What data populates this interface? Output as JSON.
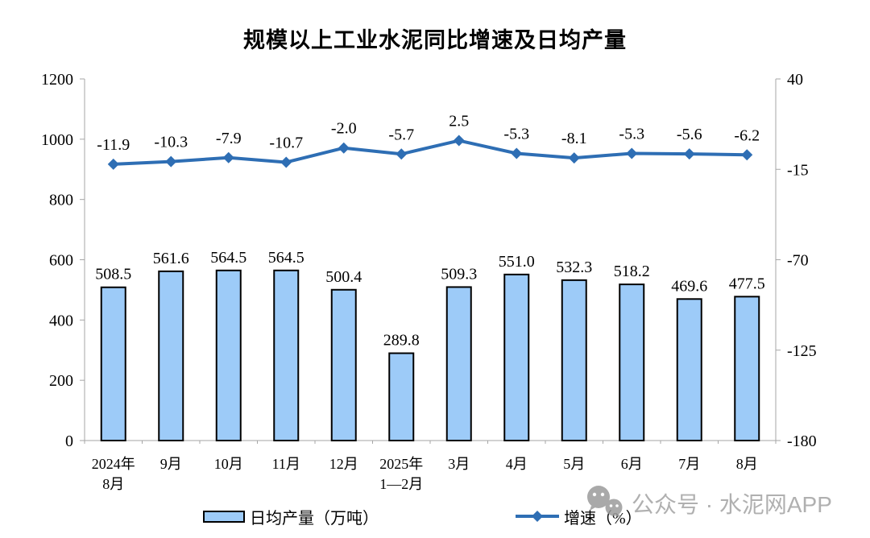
{
  "title": "规模以上工业水泥同比增速及日均产量",
  "chart_data": {
    "type": "bar+line combo",
    "title": "规模以上工业水泥同比增速及日均产量",
    "categories": [
      [
        "2024年",
        "8月"
      ],
      [
        "9月"
      ],
      [
        "10月"
      ],
      [
        "11月"
      ],
      [
        "12月"
      ],
      [
        "2025年",
        "1—2月"
      ],
      [
        "3月"
      ],
      [
        "4月"
      ],
      [
        "5月"
      ],
      [
        "6月"
      ],
      [
        "7月"
      ],
      [
        "8月"
      ]
    ],
    "series": [
      {
        "name": "日均产量（万吨）",
        "type": "bar",
        "axis": "left",
        "values": [
          508.5,
          561.6,
          564.5,
          564.5,
          500.4,
          289.8,
          509.3,
          551.0,
          532.3,
          518.2,
          469.6,
          477.5
        ],
        "labels": [
          "508.5",
          "561.6",
          "564.5",
          "564.5",
          "500.4",
          "289.8",
          "509.3",
          "551.0",
          "532.3",
          "518.2",
          "469.6",
          "477.5"
        ]
      },
      {
        "name": "增速（%）",
        "type": "line",
        "axis": "right",
        "values": [
          -11.9,
          -10.3,
          -7.9,
          -10.7,
          -2.0,
          -5.7,
          2.5,
          -5.3,
          -8.1,
          -5.3,
          -5.6,
          -6.2
        ],
        "labels": [
          "-11.9",
          "-10.3",
          "-7.9",
          "-10.7",
          "-2.0",
          "-5.7",
          "2.5",
          "-5.3",
          "-8.1",
          "-5.3",
          "-5.6",
          "-6.2"
        ]
      }
    ],
    "left_axis": {
      "min": 0,
      "max": 1200,
      "ticks": [
        0,
        200,
        400,
        600,
        800,
        1000,
        1200
      ]
    },
    "right_axis": {
      "min": -180,
      "max": 40,
      "ticks": [
        40,
        -15,
        -70,
        -125,
        -180
      ]
    },
    "grid": false,
    "legend_position": "bottom"
  },
  "legend": {
    "bar_label": "日均产量（万吨）",
    "line_label": "增速（%）"
  },
  "watermark": {
    "text": "公众号 · 水泥网APP",
    "icon": "wechat-icon"
  },
  "colors": {
    "bar_fill": "#9DCBF8",
    "bar_stroke": "#000000",
    "line": "#2E6EB4",
    "axis": "#A6A6A6",
    "text": "#000000",
    "watermark": "#A8A8A8"
  }
}
